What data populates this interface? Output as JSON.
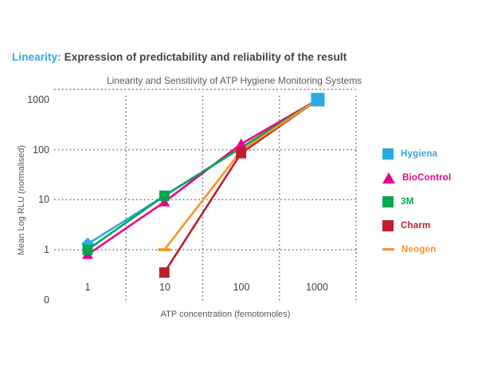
{
  "header": {
    "title_highlight": "Linearity:",
    "title_rest": " Expression of predictability and reliability of the result"
  },
  "chart_data": {
    "type": "line",
    "title": "Linearity and Sensitivity of ATP Hygiene Monitoring Systems",
    "xlabel": "ATP concentration (femotomoles)",
    "ylabel": "Mean Log RLU (normalised)",
    "x_scale": "log",
    "y_scale": "log",
    "x_ticks": [
      "1",
      "10",
      "100",
      "1000"
    ],
    "y_ticks": [
      "1000",
      "100",
      "10",
      "1",
      "0"
    ],
    "x_gridlines": [
      3.16,
      31.6,
      316,
      3162
    ],
    "y_gridlines": [
      1600,
      100,
      10,
      1
    ],
    "grid_style": "dotted",
    "legend_position": "right",
    "series": [
      {
        "name": "Hygiena",
        "color": "#29ABE2",
        "legend_marker": "square",
        "points": [
          {
            "x": 1,
            "y": 1.3,
            "marker": "diamond"
          },
          {
            "x": 1000,
            "y": 1000,
            "marker": "square-lg"
          }
        ]
      },
      {
        "name": "BioControl",
        "color": "#EC008C",
        "legend_marker": "triangle",
        "points": [
          {
            "x": 1,
            "y": 0.8,
            "marker": "triangle"
          },
          {
            "x": 10,
            "y": 9,
            "marker": "triangle"
          },
          {
            "x": 100,
            "y": 130,
            "marker": "triangle"
          },
          {
            "x": 1000,
            "y": 1000,
            "marker": null
          }
        ]
      },
      {
        "name": "3M",
        "color": "#00A651",
        "legend_marker": "square",
        "points": [
          {
            "x": 1,
            "y": 1.0,
            "marker": "square"
          },
          {
            "x": 10,
            "y": 12,
            "marker": "square"
          },
          {
            "x": 1000,
            "y": 1000,
            "marker": null
          }
        ]
      },
      {
        "name": "Charm",
        "color": "#BE1E2D",
        "legend_marker": "square",
        "points": [
          {
            "x": 10,
            "y": 0.35,
            "marker": "square"
          },
          {
            "x": 100,
            "y": 85,
            "marker": "square"
          },
          {
            "x": 1000,
            "y": 1000,
            "marker": null
          }
        ]
      },
      {
        "name": "Neogen",
        "color": "#F7941E",
        "legend_marker": "dash",
        "points": [
          {
            "x": 10,
            "y": 1.0,
            "marker": "dash"
          },
          {
            "x": 100,
            "y": 95,
            "marker": null
          },
          {
            "x": 1000,
            "y": 1000,
            "marker": null
          }
        ]
      }
    ]
  }
}
